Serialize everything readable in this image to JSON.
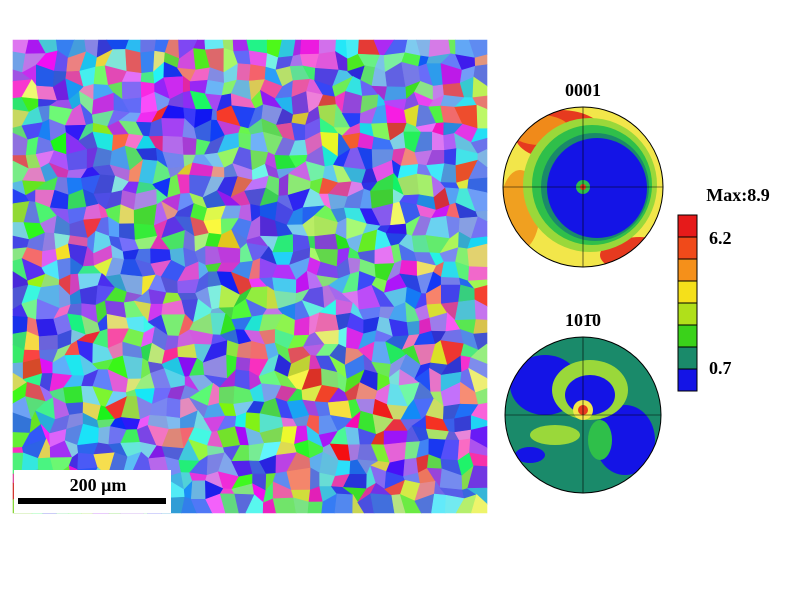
{
  "map": {
    "scale_bar": "200  μm"
  },
  "pole_figures": [
    {
      "label": "0001"
    },
    {
      "label": "101̄0"
    }
  ],
  "color_bar": {
    "max_label": "Max:8.9",
    "ticks": [
      6.2,
      0.7
    ]
  }
}
